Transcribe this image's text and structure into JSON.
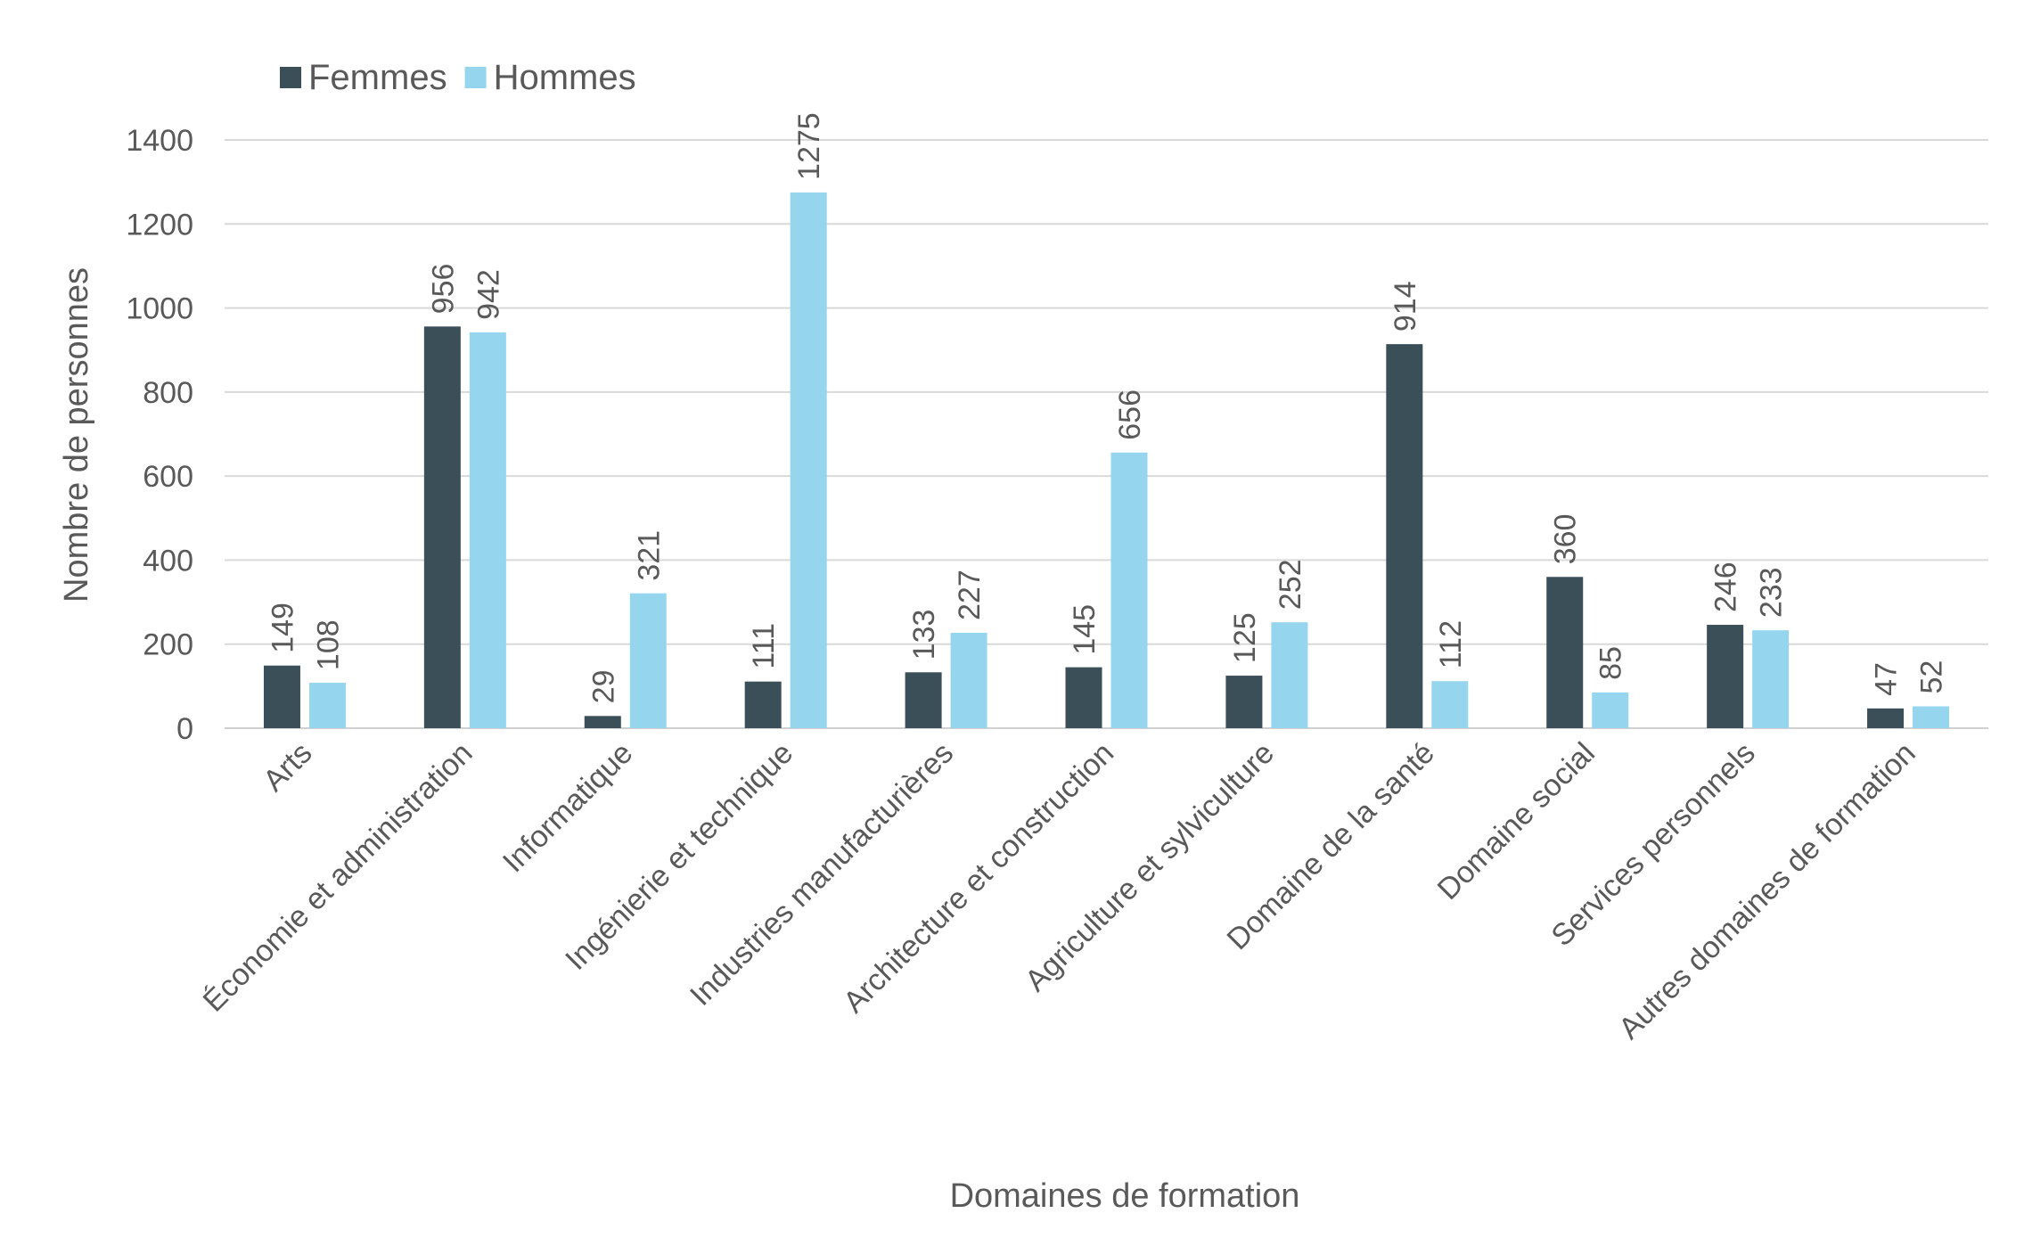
{
  "chart_data": {
    "type": "bar",
    "title": "",
    "xlabel": "Domaines de formation",
    "ylabel": "Nombre de personnes",
    "ylim": [
      0,
      1400
    ],
    "yticks": [
      0,
      200,
      400,
      600,
      800,
      1000,
      1200,
      1400
    ],
    "grid": true,
    "legend_position": "top-left",
    "categories": [
      "Arts",
      "Économie et administration",
      "Informatique",
      "Ingénierie et technique",
      "Industries manufacturières",
      "Architecture et construction",
      "Agriculture et sylviculture",
      "Domaine de la santé",
      "Domaine social",
      "Services personnels",
      "Autres domaines de formation"
    ],
    "series": [
      {
        "name": "Femmes",
        "color": "#3b4f59",
        "values": [
          149,
          956,
          29,
          111,
          133,
          145,
          125,
          914,
          360,
          246,
          47
        ]
      },
      {
        "name": "Hommes",
        "color": "#96d5ee",
        "values": [
          108,
          942,
          321,
          1275,
          227,
          656,
          252,
          112,
          85,
          233,
          52
        ]
      }
    ]
  }
}
